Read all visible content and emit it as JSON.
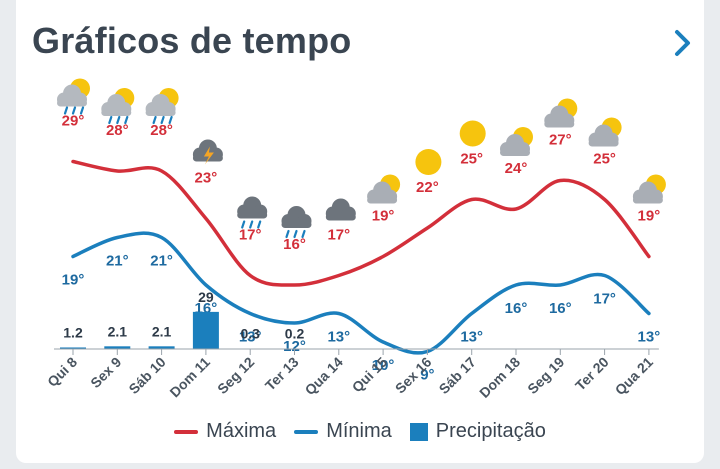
{
  "header": {
    "title": "Gráficos de tempo",
    "next_icon": "chevron-right-icon"
  },
  "colors": {
    "max_line": "#d32f3a",
    "min_line": "#1b7fbd",
    "max_text": "#d32f3a",
    "min_text": "#1e6aa0",
    "bar": "#1b7fbd",
    "title": "#3a4551"
  },
  "chart_data": {
    "type": "line",
    "categories": [
      "Qui 8",
      "Sex 9",
      "Sáb 10",
      "Dom 11",
      "Seg 12",
      "Ter 13",
      "Qua 14",
      "Qui 15",
      "Sex 16",
      "Sáb 17",
      "Dom 18",
      "Seg 19",
      "Ter 20",
      "Qua 21"
    ],
    "icons": [
      "sun-cloud-rain",
      "sun-cloud-rain",
      "sun-cloud-rain",
      "storm-cloud",
      "cloud-rain",
      "cloud-rain",
      "cloud",
      "sun-cloud",
      "sun",
      "sun",
      "sun-cloud",
      "sun-cloud",
      "sun-cloud",
      "sun-cloud"
    ],
    "series": [
      {
        "name": "Máxima",
        "values": [
          29,
          28,
          28,
          23,
          17,
          16,
          17,
          19,
          22,
          25,
          24,
          27,
          25,
          19
        ],
        "labels": [
          "29°",
          "28°",
          "28°",
          "23°",
          "17°",
          "16°",
          "17°",
          "19°",
          "22°",
          "25°",
          "24°",
          "27°",
          "25°",
          "19°"
        ]
      },
      {
        "name": "Mínima",
        "values": [
          19,
          21,
          21,
          16,
          13,
          12,
          13,
          10,
          9,
          13,
          16,
          16,
          17,
          13
        ],
        "labels": [
          "19°",
          "21°",
          "21°",
          "16°",
          "13°",
          "12°",
          "13°",
          "10°",
          "9°",
          "13°",
          "16°",
          "16°",
          "17°",
          "13°"
        ]
      },
      {
        "name": "Precipitação",
        "values": [
          1.2,
          2.1,
          2.1,
          29,
          0.3,
          0.2,
          null,
          null,
          null,
          null,
          null,
          null,
          null,
          null
        ],
        "labels": [
          "1.2",
          "2.1",
          "2.1",
          "29",
          "0.3",
          "0.2",
          "",
          "",
          "",
          "",
          "",
          "",
          "",
          ""
        ]
      }
    ]
  },
  "legend": {
    "max": "Máxima",
    "min": "Mínima",
    "precip": "Precipitação"
  }
}
